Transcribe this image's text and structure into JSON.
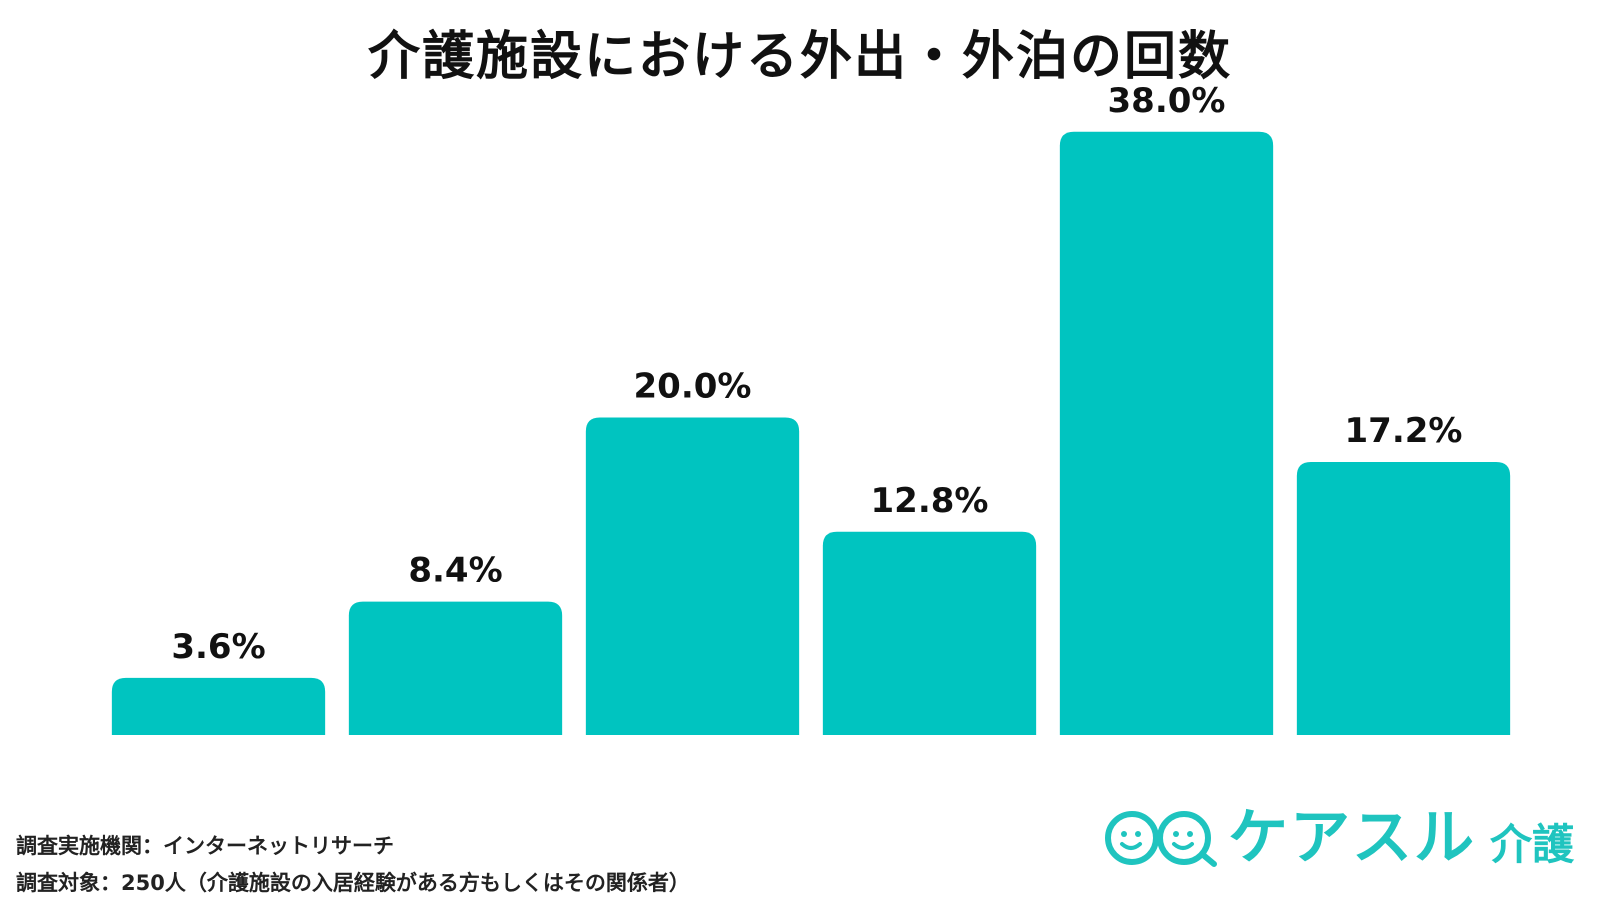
{
  "chart_data": {
    "type": "bar",
    "title": "介護施設における外出・外泊の回数",
    "xlabel": "",
    "ylabel": "",
    "ylim": [
      0,
      40
    ],
    "grid": false,
    "series": [
      {
        "values": [
          3.6,
          8.4,
          20.0,
          12.8,
          38.0,
          17.2
        ],
        "data_labels": [
          "3.6%",
          "8.4%",
          "20.0%",
          "12.8%",
          "38.0%",
          "17.2%"
        ],
        "color": "#00c4c0"
      }
    ]
  },
  "footer": {
    "line1": "調査実施機関：インターネットリサーチ",
    "line2": "調査対象：250人（介護施設の入居経験がある方もしくはその関係者）"
  },
  "logo": {
    "text": "ケアスル",
    "sub": "介護",
    "icon": "smiley-faces-icon",
    "color": "#1fc4bf"
  }
}
